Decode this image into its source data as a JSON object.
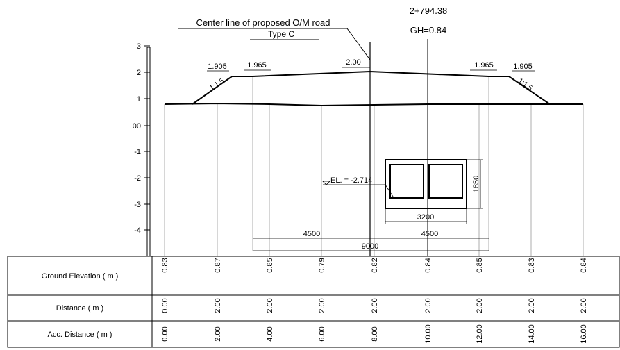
{
  "station": "2+794.38",
  "gh": "GH=0.84",
  "centerline": {
    "line1": "Center line of proposed O/M road",
    "line2": "Type C"
  },
  "road": {
    "left_shoulder": "1.905",
    "left_lane": "1.965",
    "crown": "2.00",
    "right_lane": "1.965",
    "right_shoulder": "1.905",
    "slope_left": "1:1.5",
    "slope_right": "1:1.5"
  },
  "scale_labels": [
    "3",
    "2",
    "1",
    "00",
    "-1",
    "-2",
    "-3",
    "-4"
  ],
  "culvert": {
    "elevation": "EL. = -2.714",
    "height": "1850",
    "width": "3200"
  },
  "dimensions": {
    "left": "4500",
    "right": "4500",
    "total": "9000"
  },
  "table": {
    "rows": [
      {
        "label": "Ground Elevation ( m )",
        "values": [
          "0.83",
          "0.87",
          "0.85",
          "0.79",
          "0.82",
          "0.84",
          "0.85",
          "0.83",
          "0.84"
        ]
      },
      {
        "label": "Distance ( m )",
        "values": [
          "0.00",
          "2.00",
          "2.00",
          "2.00",
          "2.00",
          "2.00",
          "2.00",
          "2.00",
          "2.00"
        ]
      },
      {
        "label": "Acc. Distance ( m )",
        "values": [
          "0.00",
          "2.00",
          "4.00",
          "6.00",
          "8.00",
          "10.00",
          "12.00",
          "14.00",
          "16.00"
        ]
      }
    ]
  }
}
